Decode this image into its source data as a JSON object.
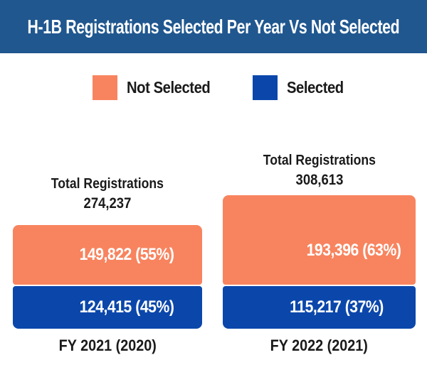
{
  "header": {
    "title": "H-1B Registrations Selected Per Year Vs Not Selected"
  },
  "legend": {
    "items": [
      {
        "label": "Not Selected",
        "color": "#F8845F"
      },
      {
        "label": "Selected",
        "color": "#0B47AB"
      }
    ]
  },
  "columns": [
    {
      "total_label": "Total Registrations",
      "total_value": "274,237",
      "not_selected_label": "149,822 (55%)",
      "selected_label": "124,415 (45%)",
      "axis_label": "FY 2021 (2020)"
    },
    {
      "total_label": "Total Registrations",
      "total_value": "308,613",
      "not_selected_label": "193,396 (63%)",
      "selected_label": "115,217 (37%)",
      "axis_label": "FY 2022 (2021)"
    }
  ],
  "colors": {
    "header_background": "#20578F",
    "not_selected": "#F8845F",
    "selected": "#0B47AB",
    "title_text": "#FFFFFF",
    "body_text": "#1A1A1A",
    "segment_text": "#FFFFFF"
  },
  "chart_data": {
    "type": "bar",
    "stacked": true,
    "orientation": "vertical",
    "title": "H-1B Registrations Selected Per Year Vs Not Selected",
    "categories": [
      "FY 2021 (2020)",
      "FY 2022 (2021)"
    ],
    "series": [
      {
        "name": "Not Selected",
        "color": "#F8845F",
        "values": [
          149822,
          193396
        ],
        "percentages": [
          55,
          63
        ],
        "data_labels": [
          "149,822 (55%)",
          "193,396 (63%)"
        ]
      },
      {
        "name": "Selected",
        "color": "#0B47AB",
        "values": [
          124415,
          115217
        ],
        "percentages": [
          45,
          37
        ],
        "data_labels": [
          "124,415 (45%)",
          "115,217 (37%)"
        ]
      }
    ],
    "totals": {
      "label": "Total Registrations",
      "values": [
        274237,
        308613
      ],
      "display": [
        "274,237",
        "308,613"
      ]
    },
    "legend_position": "top",
    "grid": false,
    "axes_shown": false
  }
}
